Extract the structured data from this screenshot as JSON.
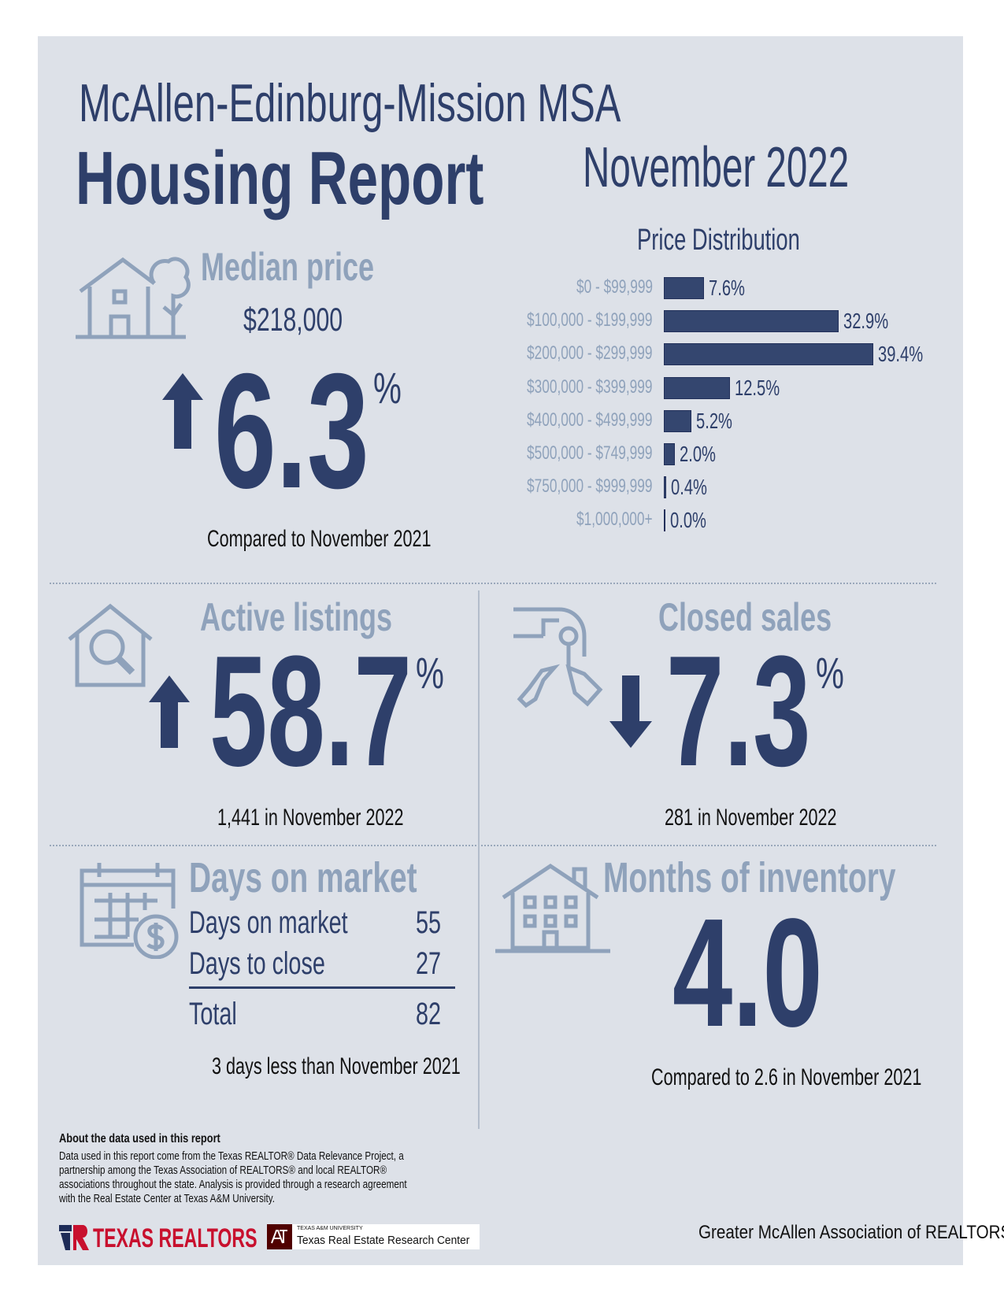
{
  "header": {
    "region": "McAllen-Edinburg-Mission MSA",
    "title": "Housing Report",
    "period": "November 2022"
  },
  "median_price": {
    "heading": "Median price",
    "value": "$218,000",
    "change": "6.3",
    "unit": "%",
    "direction": "up",
    "caption": "Compared to November 2021"
  },
  "chart_data": {
    "type": "bar",
    "orientation": "horizontal",
    "title": "Price Distribution",
    "categories": [
      "$0 - $99,999",
      "$100,000 - $199,999",
      "$200,000 - $299,999",
      "$300,000 - $399,999",
      "$400,000 - $499,999",
      "$500,000 - $749,999",
      "$750,000 - $999,999",
      "$1,000,000+"
    ],
    "values": [
      7.6,
      32.9,
      39.4,
      12.5,
      5.2,
      2.0,
      0.4,
      0.0
    ],
    "labels": [
      "7.6%",
      "32.9%",
      "39.4%",
      "12.5%",
      "5.2%",
      "2.0%",
      "0.4%",
      "0.0%"
    ],
    "bar_color": "#34466f"
  },
  "active_listings": {
    "heading": "Active listings",
    "change": "58.7",
    "unit": "%",
    "direction": "up",
    "caption": "1,441 in November 2022"
  },
  "closed_sales": {
    "heading": "Closed sales",
    "change": "7.3",
    "unit": "%",
    "direction": "down",
    "caption": "281 in November 2022"
  },
  "days_on_market": {
    "heading": "Days on market",
    "rows": [
      {
        "label": "Days on market",
        "value": "55"
      },
      {
        "label": "Days to close",
        "value": "27"
      }
    ],
    "total": {
      "label": "Total",
      "value": "82"
    },
    "caption": "3 days less than November 2021"
  },
  "months_inventory": {
    "heading": "Months of inventory",
    "value": "4.0",
    "caption": "Compared to 2.6 in November 2021"
  },
  "footer": {
    "about_heading": "About the data used in this report",
    "about_lines": [
      "Data used in this report come from the Texas REALTOR® Data Relevance Project, a",
      "partnership among the Texas Association of REALTORS® and local REALTOR®",
      "associations throughout the state. Analysis is provided through a research agreement",
      "with the Real Estate Center at Texas A&M University."
    ],
    "logo_texas_realtors": "TEXAS REALTORS",
    "logo_tamu_small": "TEXAS A&M UNIVERSITY",
    "logo_tamu": "Texas Real Estate Research Center",
    "association": "Greater McAllen Association of REALTORS®"
  },
  "colors": {
    "navy": "#2e3f6a",
    "muted": "#8fa2bb",
    "panel": "#dde1e8",
    "brand_red": "#c8102e"
  }
}
